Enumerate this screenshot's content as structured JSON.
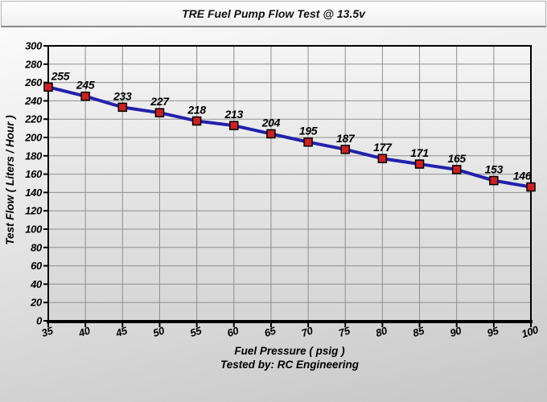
{
  "title_bar": {
    "title": "TRE Fuel Pump Flow Test @ 13.5v"
  },
  "chart_data": {
    "type": "line",
    "title": "TRE Fuel Pump Flow Test @ 13.5v",
    "x": [
      35,
      40,
      45,
      50,
      55,
      60,
      65,
      70,
      75,
      80,
      85,
      90,
      95,
      100
    ],
    "series": [
      {
        "name": "Test Flow",
        "values": [
          255,
          245,
          233,
          227,
          218,
          213,
          204,
          195,
          187,
          177,
          171,
          165,
          153,
          146
        ]
      }
    ],
    "data_labels": true,
    "xlabel": "Fuel Pressure ( psig )",
    "ylabel": "Test Flow ( Liters / Hour )",
    "footer": "Tested by: RC Engineering",
    "xlim": [
      35,
      100
    ],
    "ylim": [
      0,
      300
    ],
    "x_tick_step": 5,
    "y_tick_step": 20,
    "grid": true,
    "legend": "none",
    "colors": {
      "line": "#2121ad",
      "marker_fill": "#cf2020",
      "marker_stroke": "#000000",
      "grid": "#8f8f8f",
      "axis": "#000000",
      "plot_bg_top": "#f4f4f4",
      "plot_bg_bottom": "#d5d5d5"
    }
  }
}
